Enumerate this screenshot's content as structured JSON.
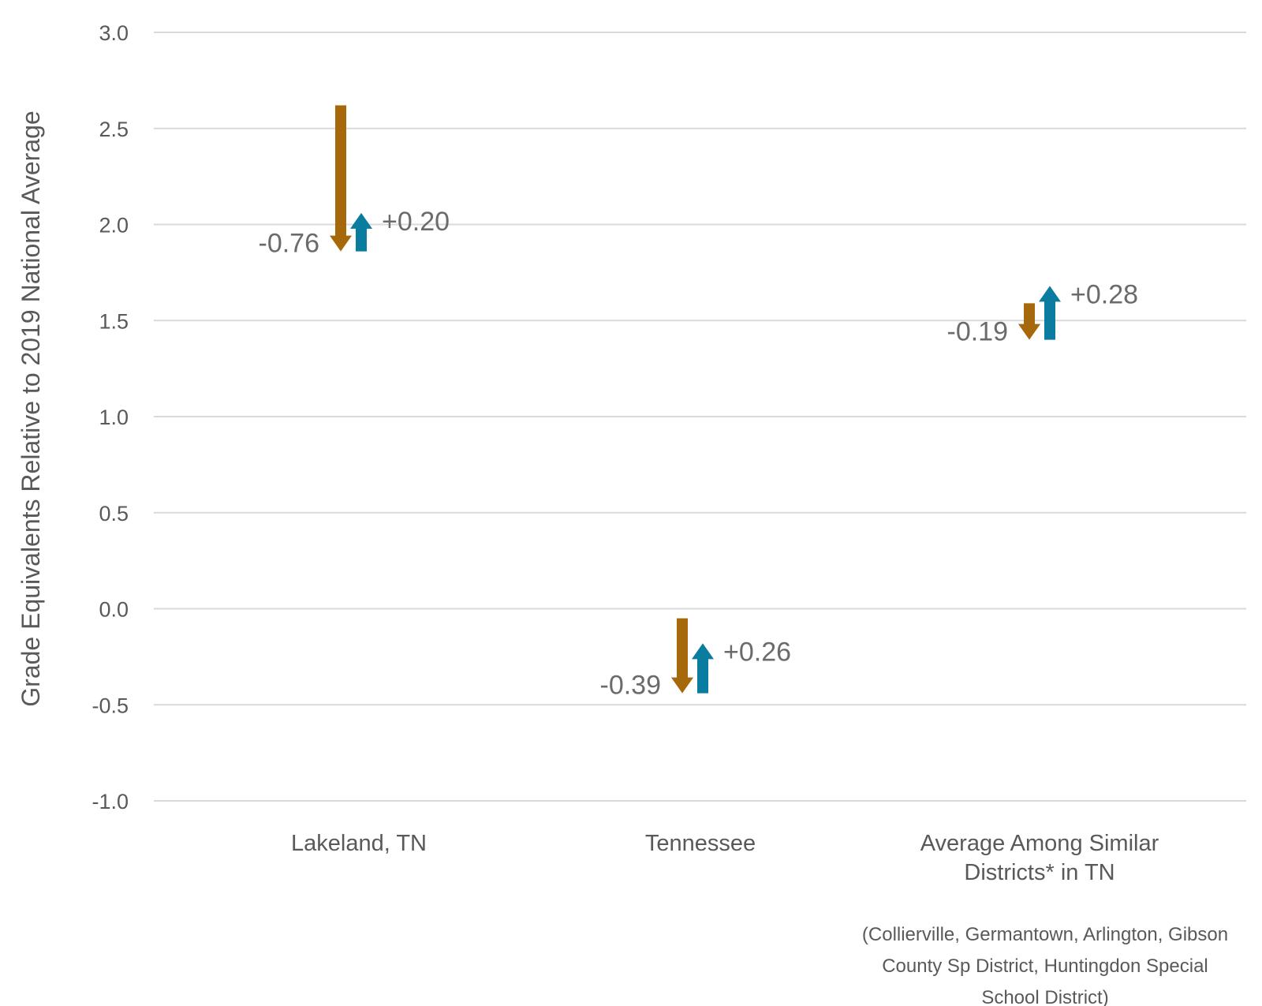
{
  "chart_data": {
    "type": "arrow",
    "ylabel": "Grade Equivalents Relative to 2019 National Average",
    "ylim": [
      -1.0,
      3.0
    ],
    "yticks": [
      "3.0",
      "2.5",
      "2.0",
      "1.5",
      "1.0",
      "0.5",
      "0.0",
      "-0.5",
      "-1.0"
    ],
    "categories": [
      {
        "label_lines": [
          "Lakeland, TN"
        ],
        "note_lines": []
      },
      {
        "label_lines": [
          "Tennessee"
        ],
        "note_lines": []
      },
      {
        "label_lines": [
          "Average Among Similar",
          "Districts* in TN"
        ],
        "note_lines": [
          "(Collierville, Germantown, Arlington, Gibson",
          "County Sp District, Huntingdon Special",
          "School District)"
        ]
      }
    ],
    "series": [
      {
        "decline_start": 2.62,
        "decline_end": 1.86,
        "decline_label": "-0.76",
        "recovery_start": 1.86,
        "recovery_end": 2.06,
        "recovery_label": "+0.20"
      },
      {
        "decline_start": -0.05,
        "decline_end": -0.44,
        "decline_label": "-0.39",
        "recovery_start": -0.44,
        "recovery_end": -0.18,
        "recovery_label": "+0.26"
      },
      {
        "decline_start": 1.59,
        "decline_end": 1.4,
        "decline_label": "-0.19",
        "recovery_start": 1.4,
        "recovery_end": 1.68,
        "recovery_label": "+0.28"
      }
    ],
    "colors": {
      "decline": "#A5680A",
      "recovery": "#0A7CA0",
      "grid": "#D9D9D9",
      "text": "#595959"
    },
    "grid": true,
    "legend": "none"
  }
}
